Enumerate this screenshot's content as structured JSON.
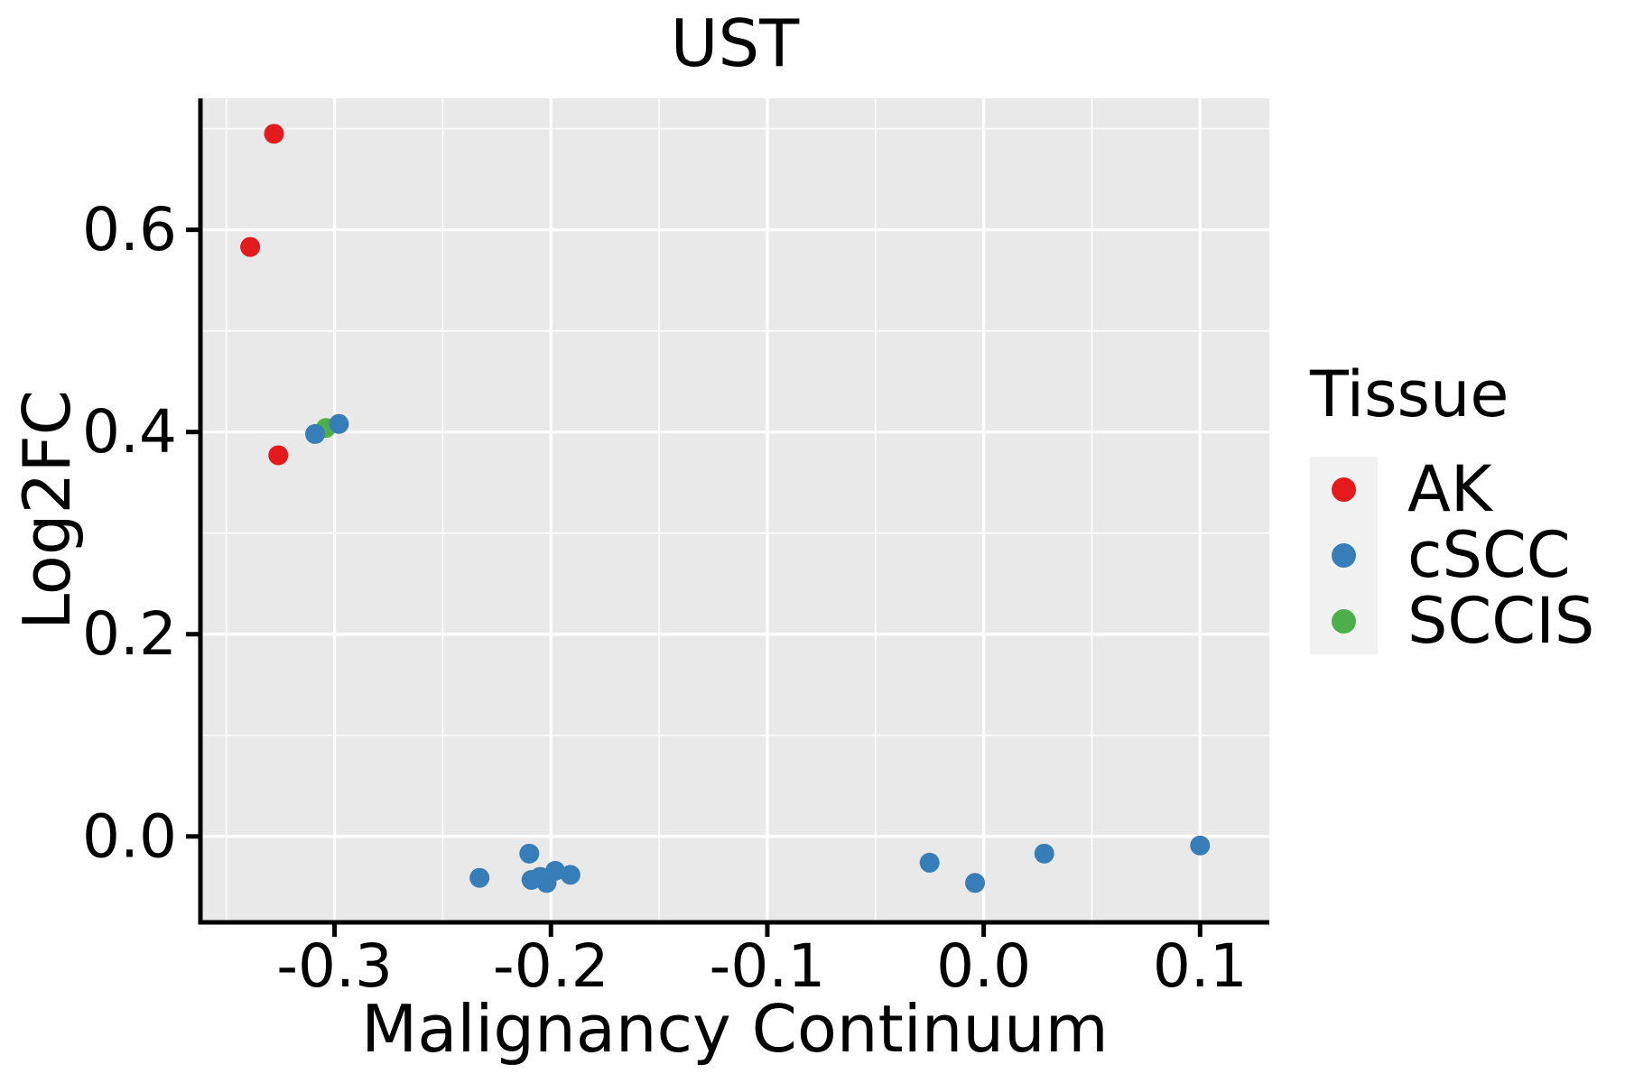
{
  "chart_data": {
    "type": "scatter",
    "title": "UST",
    "xlabel": "Malignancy Continuum",
    "ylabel": "Log2FC",
    "xlim": [
      -0.362,
      0.132
    ],
    "ylim": [
      -0.085,
      0.73
    ],
    "x_ticks": {
      "values": [
        -0.3,
        -0.2,
        -0.1,
        0.0,
        0.1
      ],
      "labels": [
        "-0.3",
        "-0.2",
        "-0.1",
        "0.0",
        "0.1"
      ]
    },
    "y_ticks": {
      "values": [
        0.0,
        0.2,
        0.4,
        0.6
      ],
      "labels": [
        "0.0",
        "0.2",
        "0.4",
        "0.6"
      ]
    },
    "x_minor_gridlines": [
      -0.35,
      -0.25,
      -0.15,
      -0.05,
      0.05
    ],
    "y_minor_gridlines": [
      0.1,
      0.3,
      0.5,
      0.7
    ],
    "grid": "white major and minor gridlines on gray panel",
    "legend": {
      "title": "Tissue",
      "position": "right",
      "entries": [
        "AK",
        "cSCC",
        "SCCIS"
      ]
    },
    "series": [
      {
        "name": "AK",
        "color": "#e41a1c",
        "z": 1,
        "points": [
          [
            -0.328,
            0.695
          ],
          [
            -0.339,
            0.583
          ],
          [
            -0.326,
            0.377
          ]
        ]
      },
      {
        "name": "cSCC",
        "color": "#377eb8",
        "z": 3,
        "points": [
          [
            -0.309,
            0.398
          ],
          [
            -0.298,
            0.408
          ],
          [
            -0.233,
            -0.041
          ],
          [
            -0.21,
            -0.017
          ],
          [
            -0.209,
            -0.043
          ],
          [
            -0.205,
            -0.04
          ],
          [
            -0.202,
            -0.046
          ],
          [
            -0.198,
            -0.034
          ],
          [
            -0.191,
            -0.038
          ],
          [
            -0.025,
            -0.026
          ],
          [
            -0.004,
            -0.046
          ],
          [
            0.028,
            -0.017
          ],
          [
            0.1,
            -0.009
          ]
        ]
      },
      {
        "name": "SCCIS",
        "color": "#4daf4a",
        "z": 2,
        "points": [
          [
            -0.304,
            0.404
          ]
        ]
      }
    ]
  },
  "styles": {
    "panel_bg": "#e9e9e9",
    "grid_color": "#ffffff",
    "axis_color": "#000000",
    "text_color": "#000000",
    "legend_key_bg": "#f1f1f1"
  }
}
